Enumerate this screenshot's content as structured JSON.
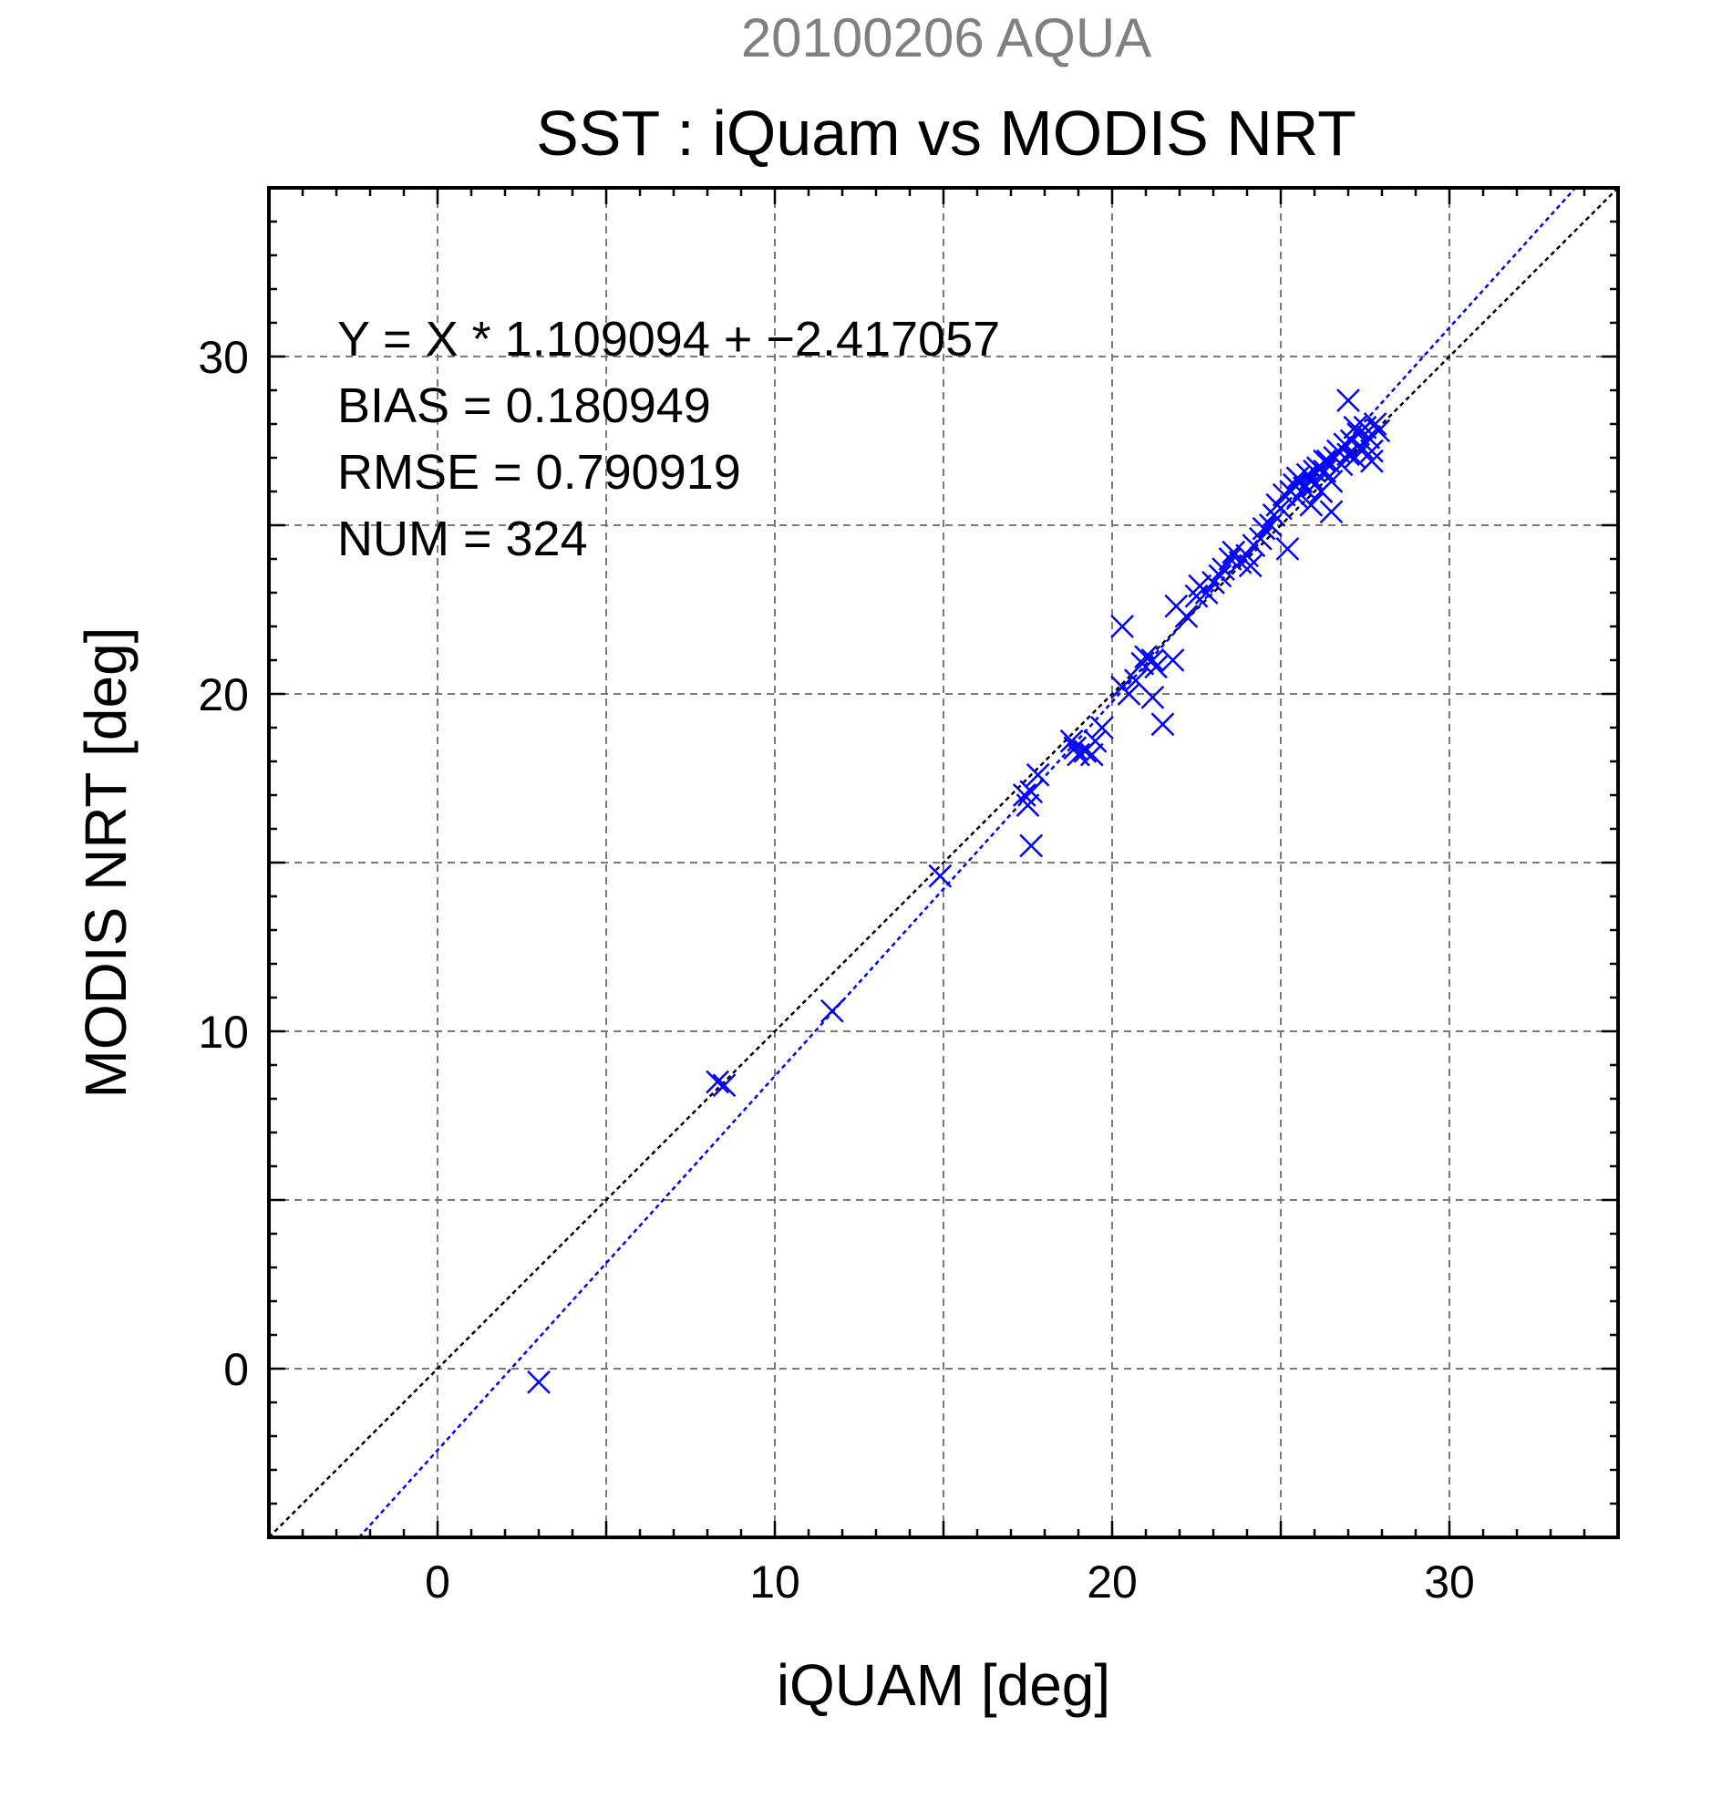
{
  "chart_data": {
    "type": "scatter",
    "title": "20100206 AQUA",
    "subtitle": "SST : iQuam vs MODIS NRT",
    "xlabel": "iQUAM [deg]",
    "ylabel": "MODIS NRT [deg]",
    "xlim": [
      -5,
      35
    ],
    "ylim": [
      -5,
      35
    ],
    "xticks": [
      0,
      10,
      20,
      30
    ],
    "yticks": [
      0,
      10,
      20,
      30
    ],
    "grid": true,
    "colors": {
      "points": "#0000ff",
      "fit_line": "#0000ff",
      "identity_line": "#000000",
      "title": "#808080"
    },
    "annotations": [
      "Y = X * 1.109094 + −2.417057",
      "BIAS = 0.180949",
      "RMSE = 0.790919",
      "NUM = 324"
    ],
    "fit": {
      "slope": 1.109094,
      "intercept": -2.417057
    },
    "identity": {
      "slope": 1,
      "intercept": 0
    },
    "series": [
      {
        "marker": "x",
        "points": [
          [
            3.0,
            -0.4
          ],
          [
            8.3,
            8.5
          ],
          [
            8.5,
            8.4
          ],
          [
            11.7,
            10.6
          ],
          [
            14.9,
            14.6
          ],
          [
            17.4,
            17.0
          ],
          [
            17.6,
            17.1
          ],
          [
            17.5,
            16.7
          ],
          [
            17.6,
            15.5
          ],
          [
            17.8,
            17.6
          ],
          [
            18.8,
            18.6
          ],
          [
            18.9,
            18.4
          ],
          [
            19.0,
            18.2
          ],
          [
            19.2,
            18.3
          ],
          [
            19.4,
            18.2
          ],
          [
            19.5,
            18.6
          ],
          [
            19.7,
            19.0
          ],
          [
            20.3,
            20.2
          ],
          [
            20.5,
            20.0
          ],
          [
            20.7,
            20.4
          ],
          [
            20.3,
            22.0
          ],
          [
            20.9,
            20.9
          ],
          [
            21.0,
            21.1
          ],
          [
            21.2,
            21.0
          ],
          [
            21.2,
            19.9
          ],
          [
            21.5,
            19.1
          ],
          [
            21.3,
            20.8
          ],
          [
            21.8,
            21.0
          ],
          [
            21.9,
            22.6
          ],
          [
            22.2,
            22.3
          ],
          [
            22.5,
            22.9
          ],
          [
            22.6,
            23.2
          ],
          [
            22.8,
            23.0
          ],
          [
            23.0,
            23.3
          ],
          [
            23.2,
            23.5
          ],
          [
            23.3,
            23.7
          ],
          [
            23.5,
            24.0
          ],
          [
            23.6,
            24.2
          ],
          [
            23.8,
            23.9
          ],
          [
            24.0,
            24.1
          ],
          [
            24.1,
            23.8
          ],
          [
            24.2,
            24.4
          ],
          [
            24.4,
            24.6
          ],
          [
            24.5,
            24.9
          ],
          [
            24.7,
            25.0
          ],
          [
            24.8,
            25.3
          ],
          [
            24.9,
            25.6
          ],
          [
            25.0,
            25.5
          ],
          [
            25.1,
            25.9
          ],
          [
            25.2,
            24.3
          ],
          [
            25.3,
            26.0
          ],
          [
            25.4,
            26.2
          ],
          [
            25.5,
            25.8
          ],
          [
            25.6,
            26.3
          ],
          [
            25.7,
            26.1
          ],
          [
            25.8,
            26.5
          ],
          [
            25.9,
            26.4
          ],
          [
            26.0,
            26.2
          ],
          [
            26.1,
            26.7
          ],
          [
            26.2,
            26.0
          ],
          [
            26.3,
            26.6
          ],
          [
            26.4,
            26.9
          ],
          [
            26.5,
            26.3
          ],
          [
            26.5,
            25.4
          ],
          [
            26.6,
            27.0
          ],
          [
            26.7,
            27.2
          ],
          [
            26.8,
            26.8
          ],
          [
            26.9,
            27.4
          ],
          [
            27.0,
            27.1
          ],
          [
            27.0,
            28.7
          ],
          [
            27.1,
            27.5
          ],
          [
            27.2,
            27.0
          ],
          [
            27.3,
            27.7
          ],
          [
            27.4,
            27.3
          ],
          [
            27.5,
            27.9
          ],
          [
            27.6,
            27.6
          ],
          [
            27.7,
            27.2
          ],
          [
            27.8,
            28.0
          ],
          [
            27.9,
            27.8
          ],
          [
            27.7,
            26.9
          ],
          [
            25.9,
            25.6
          ],
          [
            26.3,
            26.9
          ],
          [
            27.2,
            27.9
          ],
          [
            26.0,
            26.6
          ],
          [
            25.5,
            26.4
          ]
        ]
      }
    ]
  }
}
